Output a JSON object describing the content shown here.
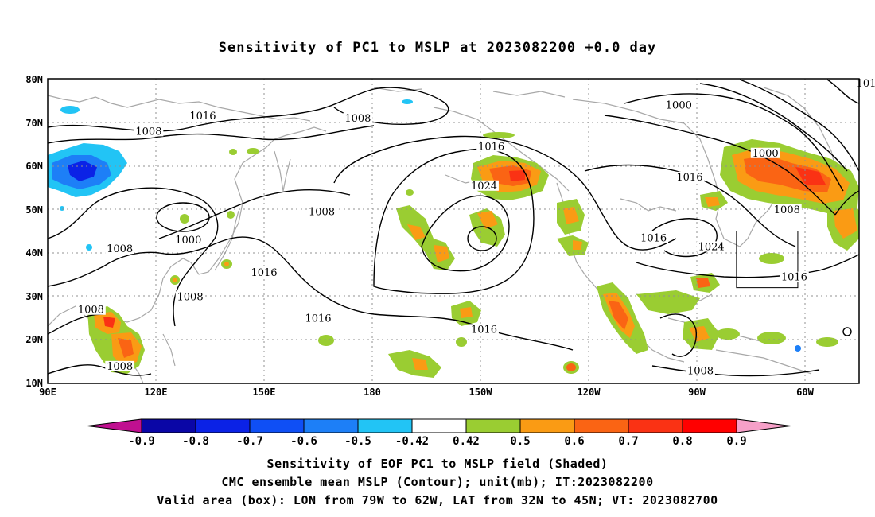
{
  "title": "Sensitivity of PC1 to MSLP at 2023082200 +0.0 day",
  "lat_ticks": [
    "80N",
    "70N",
    "60N",
    "50N",
    "40N",
    "30N",
    "20N",
    "10N"
  ],
  "lon_ticks": [
    "90E",
    "120E",
    "150E",
    "180",
    "150W",
    "120W",
    "90W",
    "60W"
  ],
  "contour_labels": [
    {
      "text": "1016",
      "lon": 133,
      "lat": 71
    },
    {
      "text": "1008",
      "lon": 118,
      "lat": 67.5
    },
    {
      "text": "1008",
      "lon": 176,
      "lat": 70.5
    },
    {
      "text": "1016",
      "lon": 213,
      "lat": 64
    },
    {
      "text": "1008",
      "lon": 166,
      "lat": 49
    },
    {
      "text": "1024",
      "lon": 211,
      "lat": 55
    },
    {
      "text": "1000",
      "lon": 129,
      "lat": 42.5
    },
    {
      "text": "1008",
      "lon": 110,
      "lat": 40.5
    },
    {
      "text": "1016",
      "lon": 150,
      "lat": 35
    },
    {
      "text": "1008",
      "lon": 129.5,
      "lat": 29.5
    },
    {
      "text": "1016",
      "lon": 165,
      "lat": 24.5
    },
    {
      "text": "1016",
      "lon": 211,
      "lat": 22
    },
    {
      "text": "1008",
      "lon": 102,
      "lat": 26.5
    },
    {
      "text": "1008",
      "lon": 110,
      "lat": 13.5
    },
    {
      "text": "1000",
      "lon": 265,
      "lat": 73.5
    },
    {
      "text": "1000",
      "lon": 289,
      "lat": 62.5
    },
    {
      "text": "1016",
      "lon": 268,
      "lat": 57
    },
    {
      "text": "1008",
      "lon": 295,
      "lat": 49.5
    },
    {
      "text": "1016",
      "lon": 258,
      "lat": 43
    },
    {
      "text": "1024",
      "lon": 274,
      "lat": 41
    },
    {
      "text": "1016",
      "lon": 297,
      "lat": 34
    },
    {
      "text": "1008",
      "lon": 271,
      "lat": 12.5
    },
    {
      "text": "101",
      "lon": 317,
      "lat": 78.5
    }
  ],
  "valid_box": {
    "lon_min": 281,
    "lon_max": 298,
    "lat_min": 32,
    "lat_max": 45
  },
  "colorbar": {
    "labels": [
      "-0.9",
      "-0.8",
      "-0.7",
      "-0.6",
      "-0.5",
      "-0.42",
      "0.42",
      "0.5",
      "0.6",
      "0.7",
      "0.8",
      "0.9"
    ],
    "colors": [
      "#0a06a6",
      "#0b22e6",
      "#0f4ff5",
      "#1d7ff7",
      "#22c4f5",
      "#ffffff",
      "#9acd32",
      "#fa9b14",
      "#fa6414",
      "#fa3214",
      "#ff0000"
    ],
    "low_end_color": "#c01090",
    "high_end_color": "#f6a0c8"
  },
  "captions": {
    "line1": "Sensitivity of EOF PC1 to MSLP field (Shaded)",
    "line2": "CMC ensemble mean MSLP (Contour); unit(mb); IT:2023082200",
    "line3": "Valid area (box): LON from 79W to 62W, LAT from 32N to 45N; VT: 2023082700"
  }
}
